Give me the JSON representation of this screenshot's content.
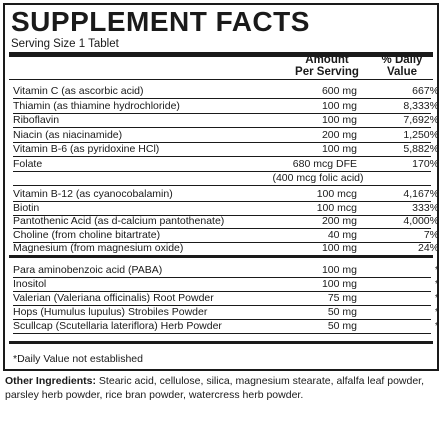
{
  "title": "SUPPLEMENT FACTS",
  "serving_size": "Serving Size 1 Tablet",
  "header": {
    "amount_line1": "Amount",
    "amount_line2": "Per Serving",
    "dv_line1": "% Daily",
    "dv_line2": "Value"
  },
  "group1": [
    {
      "name": "Vitamin C (as ascorbic acid)",
      "amount": "600 mg",
      "dv": "667%"
    },
    {
      "name": "Thiamin (as thiamine hydrochloride)",
      "amount": "100 mg",
      "dv": "8,333%"
    },
    {
      "name": "Riboflavin",
      "amount": "100 mg",
      "dv": "7,692%"
    },
    {
      "name": "Niacin (as niacinamide)",
      "amount": "200 mg",
      "dv": "1,250%"
    },
    {
      "name": "Vitamin B-6 (as pyridoxine HCl)",
      "amount": "100 mg",
      "dv": "5,882%"
    },
    {
      "name": "Folate",
      "amount": "680 mcg DFE",
      "dv": "170%"
    }
  ],
  "folate_note": "(400 mcg folic acid)",
  "group2": [
    {
      "name": "Vitamin B-12 (as cyanocobalamin)",
      "amount": "100 mcg",
      "dv": "4,167%"
    },
    {
      "name": "Biotin",
      "amount": "100 mcg",
      "dv": "333%"
    },
    {
      "name": "Pantothenic Acid (as d-calcium pantothenate)",
      "amount": "200 mg",
      "dv": "4,000%"
    },
    {
      "name": "Choline (from choline bitartrate)",
      "amount": "40 mg",
      "dv": "7%"
    },
    {
      "name": "Magnesium (from magnesium oxide)",
      "amount": "100 mg",
      "dv": "24%"
    }
  ],
  "group3": [
    {
      "name": "Para aminobenzoic acid (PABA)",
      "amount": "100 mg",
      "dv": "*"
    },
    {
      "name": "Inositol",
      "amount": "100 mg",
      "dv": "*"
    },
    {
      "name": "Valerian (Valeriana officinalis) Root Powder",
      "amount": "75 mg",
      "dv": "*"
    },
    {
      "name": "Hops (Humulus lupulus) Strobiles Powder",
      "amount": "50 mg",
      "dv": "*"
    },
    {
      "name": "Scullcap (Scutellaria lateriflora) Herb Powder",
      "amount": "50 mg",
      "dv": "*"
    }
  ],
  "footnote": "*Daily Value not established",
  "other_label": "Other Ingredients:",
  "other_text": " Stearic acid, cellulose, silica, magnesium stearate, alfalfa leaf powder, parsley herb powder, rice bran powder, watercress herb powder."
}
